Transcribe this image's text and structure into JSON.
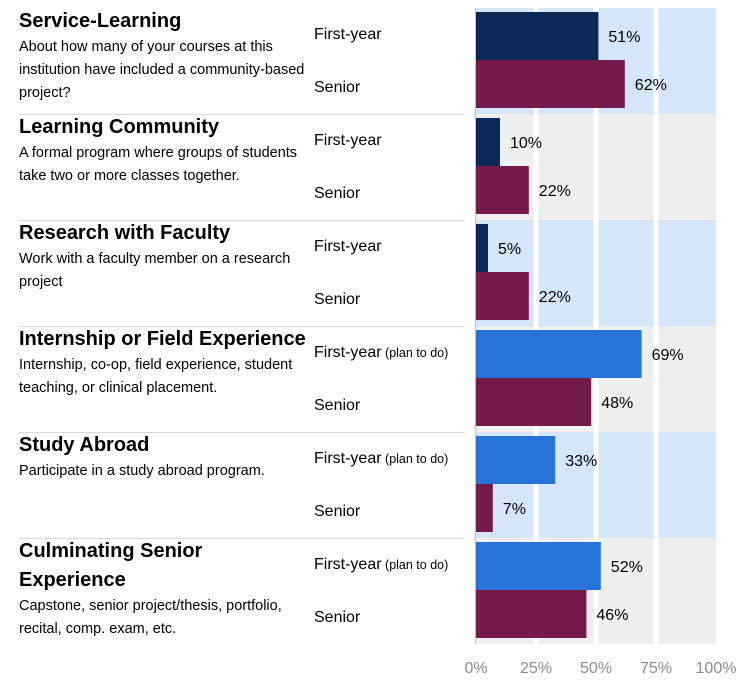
{
  "chart_data": {
    "type": "bar",
    "orientation": "horizontal",
    "xlim": [
      0,
      100
    ],
    "x_ticks": [
      "0%",
      "25%",
      "50%",
      "75%",
      "100%"
    ],
    "grid": true,
    "colors": {
      "first_year_dark": "#0b2856",
      "first_year_plan": "#2873d8",
      "senior": "#741a4a",
      "band_blue": "#d5e5fa",
      "band_gray": "#efefef"
    },
    "items": [
      {
        "title": "Service-Learning",
        "description": "About how many of your courses at this institution have included a community-based project?",
        "rows": [
          {
            "label": "First-year",
            "note": "",
            "value": 51,
            "value_label": "51%",
            "color_key": "first_year_dark"
          },
          {
            "label": "Senior",
            "note": "",
            "value": 62,
            "value_label": "62%",
            "color_key": "senior"
          }
        ]
      },
      {
        "title": "Learning Community",
        "description": "A formal program where groups of students take two or more classes together.",
        "rows": [
          {
            "label": "First-year",
            "note": "",
            "value": 10,
            "value_label": "10%",
            "color_key": "first_year_dark"
          },
          {
            "label": "Senior",
            "note": "",
            "value": 22,
            "value_label": "22%",
            "color_key": "senior"
          }
        ]
      },
      {
        "title": "Research with Faculty",
        "description": "Work with a faculty member on a research project",
        "rows": [
          {
            "label": "First-year",
            "note": "",
            "value": 5,
            "value_label": "5%",
            "color_key": "first_year_dark"
          },
          {
            "label": "Senior",
            "note": "",
            "value": 22,
            "value_label": "22%",
            "color_key": "senior"
          }
        ]
      },
      {
        "title": "Internship or Field Experience",
        "description": "Internship, co-op, field experience, student teaching, or clinical placement.",
        "rows": [
          {
            "label": "First-year",
            "note": "(plan to do)",
            "value": 69,
            "value_label": "69%",
            "color_key": "first_year_plan"
          },
          {
            "label": "Senior",
            "note": "",
            "value": 48,
            "value_label": "48%",
            "color_key": "senior"
          }
        ]
      },
      {
        "title": "Study Abroad",
        "description": "Participate in a study abroad program.",
        "rows": [
          {
            "label": "First-year",
            "note": "(plan to do)",
            "value": 33,
            "value_label": "33%",
            "color_key": "first_year_plan"
          },
          {
            "label": "Senior",
            "note": "",
            "value": 7,
            "value_label": "7%",
            "color_key": "senior"
          }
        ]
      },
      {
        "title": "Culminating Senior Experience",
        "description": "Capstone, senior project/thesis, portfolio, recital, comp. exam, etc.",
        "rows": [
          {
            "label": "First-year",
            "note": "(plan to do)",
            "value": 52,
            "value_label": "52%",
            "color_key": "first_year_plan"
          },
          {
            "label": "Senior",
            "note": "",
            "value": 46,
            "value_label": "46%",
            "color_key": "senior"
          }
        ]
      }
    ]
  }
}
